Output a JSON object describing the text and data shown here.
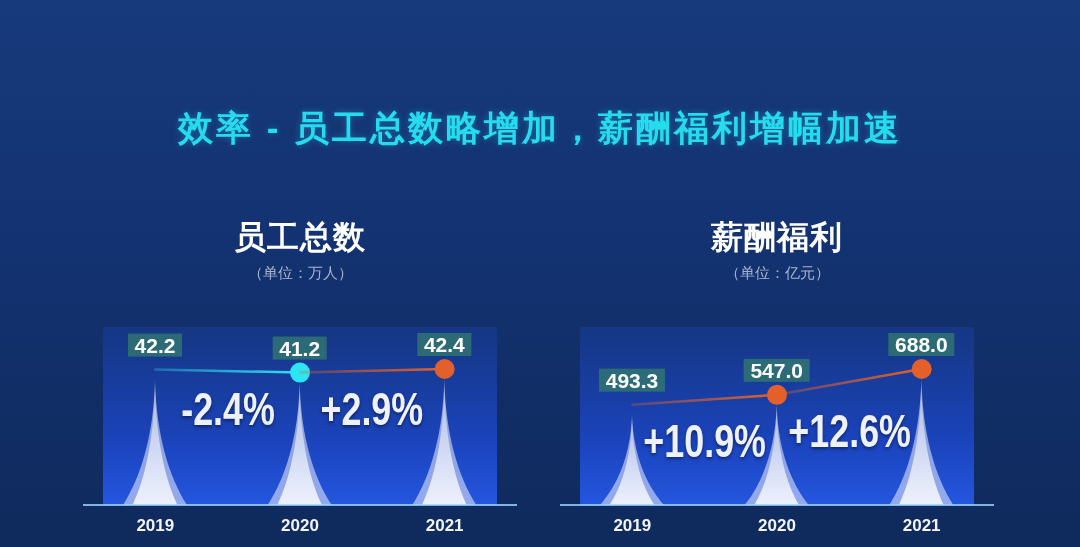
{
  "chart_data": [
    {
      "type": "other",
      "title": "效率 - 员工总数略增加，薪酬福利增幅加速"
    },
    {
      "type": "bar",
      "title": "员工总数",
      "subtitle": "（单位：万人）",
      "categories": [
        "2019",
        "2020",
        "2021"
      ],
      "series": [
        {
          "type": "bar",
          "color": "#eef1fb",
          "values": [
            42.2,
            41.2,
            42.4
          ],
          "value_labels": [
            "42.2",
            "41.2",
            "42.4"
          ]
        }
      ],
      "annotations": [
        "-2.4%",
        "+2.9%"
      ]
    },
    {
      "type": "bar",
      "title": "薪酬福利",
      "subtitle": "（单位：亿元）",
      "categories": [
        "2019",
        "2020",
        "2021"
      ],
      "series": [
        {
          "type": "bar",
          "color": "#eef1fb",
          "values": [
            493.3,
            547.0,
            688.0
          ],
          "value_labels": [
            "493.3",
            "547.0",
            "688.0"
          ]
        }
      ],
      "annotations": [
        "+10.9%",
        "+12.6%"
      ]
    }
  ]
}
